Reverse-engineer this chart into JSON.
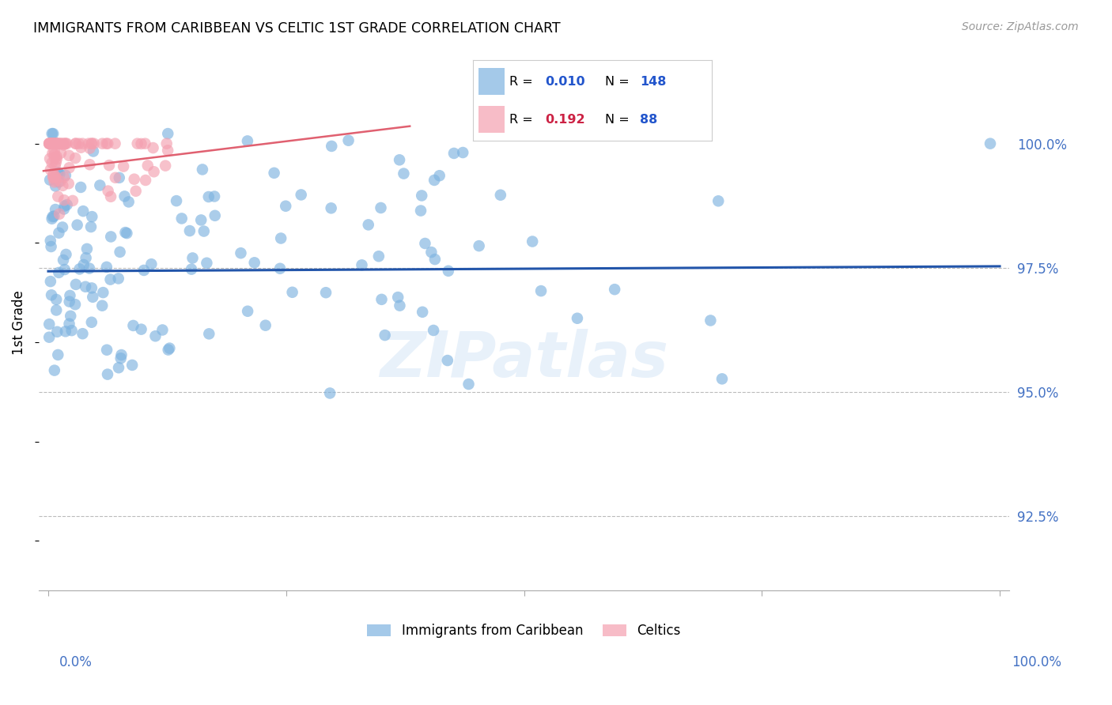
{
  "title": "IMMIGRANTS FROM CARIBBEAN VS CELTIC 1ST GRADE CORRELATION CHART",
  "source": "Source: ZipAtlas.com",
  "ylabel": "1st Grade",
  "watermark": "ZIPatlas",
  "legend": {
    "blue_R": "0.010",
    "blue_N": "148",
    "pink_R": "0.192",
    "pink_N": "88"
  },
  "blue_color": "#7eb3e0",
  "pink_color": "#f4a0b0",
  "blue_line_color": "#2255aa",
  "pink_line_color": "#e06070",
  "legend_blue_text": "#2255cc",
  "legend_pink_text": "#cc2244",
  "legend_n_color": "#2255cc",
  "ytick_color": "#4472c4",
  "xtick_color": "#4472c4",
  "grid_color": "#bbbbbb",
  "ylim": [
    91.0,
    101.8
  ],
  "xlim": [
    -0.01,
    1.01
  ],
  "yticks": [
    92.5,
    95.0,
    97.5,
    100.0
  ],
  "ytick_labels": [
    "92.5%",
    "95.0%",
    "97.5%",
    "100.0%"
  ]
}
